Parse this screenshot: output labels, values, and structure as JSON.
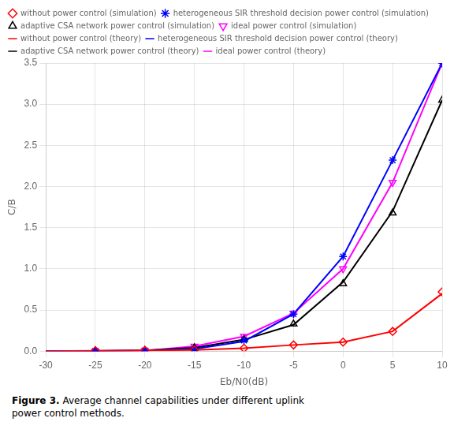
{
  "chart_data": {
    "type": "line",
    "xlabel": "Eb/N0(dB)",
    "ylabel": "C/B",
    "xlim": [
      -30,
      10
    ],
    "ylim": [
      0,
      3.5
    ],
    "xticks": [
      -30,
      -25,
      -20,
      -15,
      -10,
      -5,
      0,
      5,
      10
    ],
    "yticks": [
      {
        "value": 0,
        "label": "0.0"
      },
      0.5,
      {
        "value": 1.0,
        "label": "1.0"
      },
      1.5,
      {
        "value": 2.0,
        "label": "2.0"
      },
      2.5,
      {
        "value": 3.0,
        "label": "3.0"
      },
      3.5
    ],
    "grid": true,
    "legend": "upper left",
    "annotations": [
      "Figure 3.",
      " Average channel capabilities under different uplink\npower control methods."
    ],
    "series": [
      {
        "name": "without power control (theory)",
        "color": "#ff0000",
        "marker": "none",
        "line_style": "solid",
        "x": [
          -30,
          -25,
          -20,
          -15,
          -10,
          -5,
          0,
          5,
          10
        ],
        "values": [
          0.0,
          0.005,
          0.008,
          0.015,
          0.035,
          0.075,
          0.11,
          0.24,
          0.7
        ]
      },
      {
        "name": "without power control (simulation)",
        "color": "#ff0000",
        "marker": "diamond",
        "line_style": "none",
        "x": [
          -25,
          -20,
          -15,
          -10,
          -5,
          0,
          5,
          10
        ],
        "values": [
          0.005,
          0.008,
          0.015,
          0.035,
          0.075,
          0.11,
          0.24,
          0.72
        ]
      },
      {
        "name": "heterogeneous SIR threshold decision\npower control (theory)",
        "color": "#0000ff",
        "marker": "none",
        "line_style": "solid",
        "x": [
          -30,
          -25,
          -20,
          -15,
          -10,
          -5,
          0,
          5,
          10
        ],
        "values": [
          0.0,
          0.003,
          0.008,
          0.025,
          0.12,
          0.45,
          1.15,
          2.32,
          3.5
        ]
      },
      {
        "name": "heterogeneous SIR threshold decision\npower control (simulation)",
        "color": "#0000ff",
        "marker": "star",
        "line_style": "none",
        "x": [
          -25,
          -20,
          -15,
          -10,
          -5,
          0,
          5,
          10
        ],
        "values": [
          0.003,
          0.008,
          0.025,
          0.13,
          0.45,
          1.15,
          2.32,
          3.5
        ]
      },
      {
        "name": "adaptive CSA network power control (theory)",
        "color": "#000000",
        "marker": "none",
        "line_style": "solid",
        "x": [
          -30,
          -25,
          -20,
          -15,
          -10,
          -5,
          0,
          5,
          10
        ],
        "values": [
          0.0,
          0.003,
          0.008,
          0.04,
          0.14,
          0.32,
          0.84,
          1.7,
          3.05
        ]
      },
      {
        "name": "adaptive CSA network power control (simulation)",
        "color": "#000000",
        "marker": "triangle",
        "line_style": "none",
        "x": [
          -25,
          -20,
          -15,
          -10,
          -5,
          0,
          5,
          10
        ],
        "values": [
          0.003,
          0.008,
          0.04,
          0.14,
          0.33,
          0.82,
          1.68,
          3.05
        ]
      },
      {
        "name": "ideal power control (theory)",
        "color": "#ff00ff",
        "marker": "none",
        "line_style": "solid",
        "x": [
          -30,
          -25,
          -20,
          -15,
          -10,
          -5,
          0,
          5,
          10
        ],
        "values": [
          0.0,
          0.0,
          0.005,
          0.06,
          0.18,
          0.46,
          1.0,
          2.05,
          3.5
        ]
      },
      {
        "name": "ideal power control (simulation)",
        "color": "#ff00ff",
        "marker": "triangle_down",
        "line_style": "none",
        "x": [
          -25,
          -20,
          -15,
          -10,
          -5,
          0,
          5,
          10
        ],
        "values": [
          0.0,
          0.005,
          0.06,
          0.18,
          0.46,
          1.0,
          2.05,
          3.5
        ]
      }
    ]
  }
}
